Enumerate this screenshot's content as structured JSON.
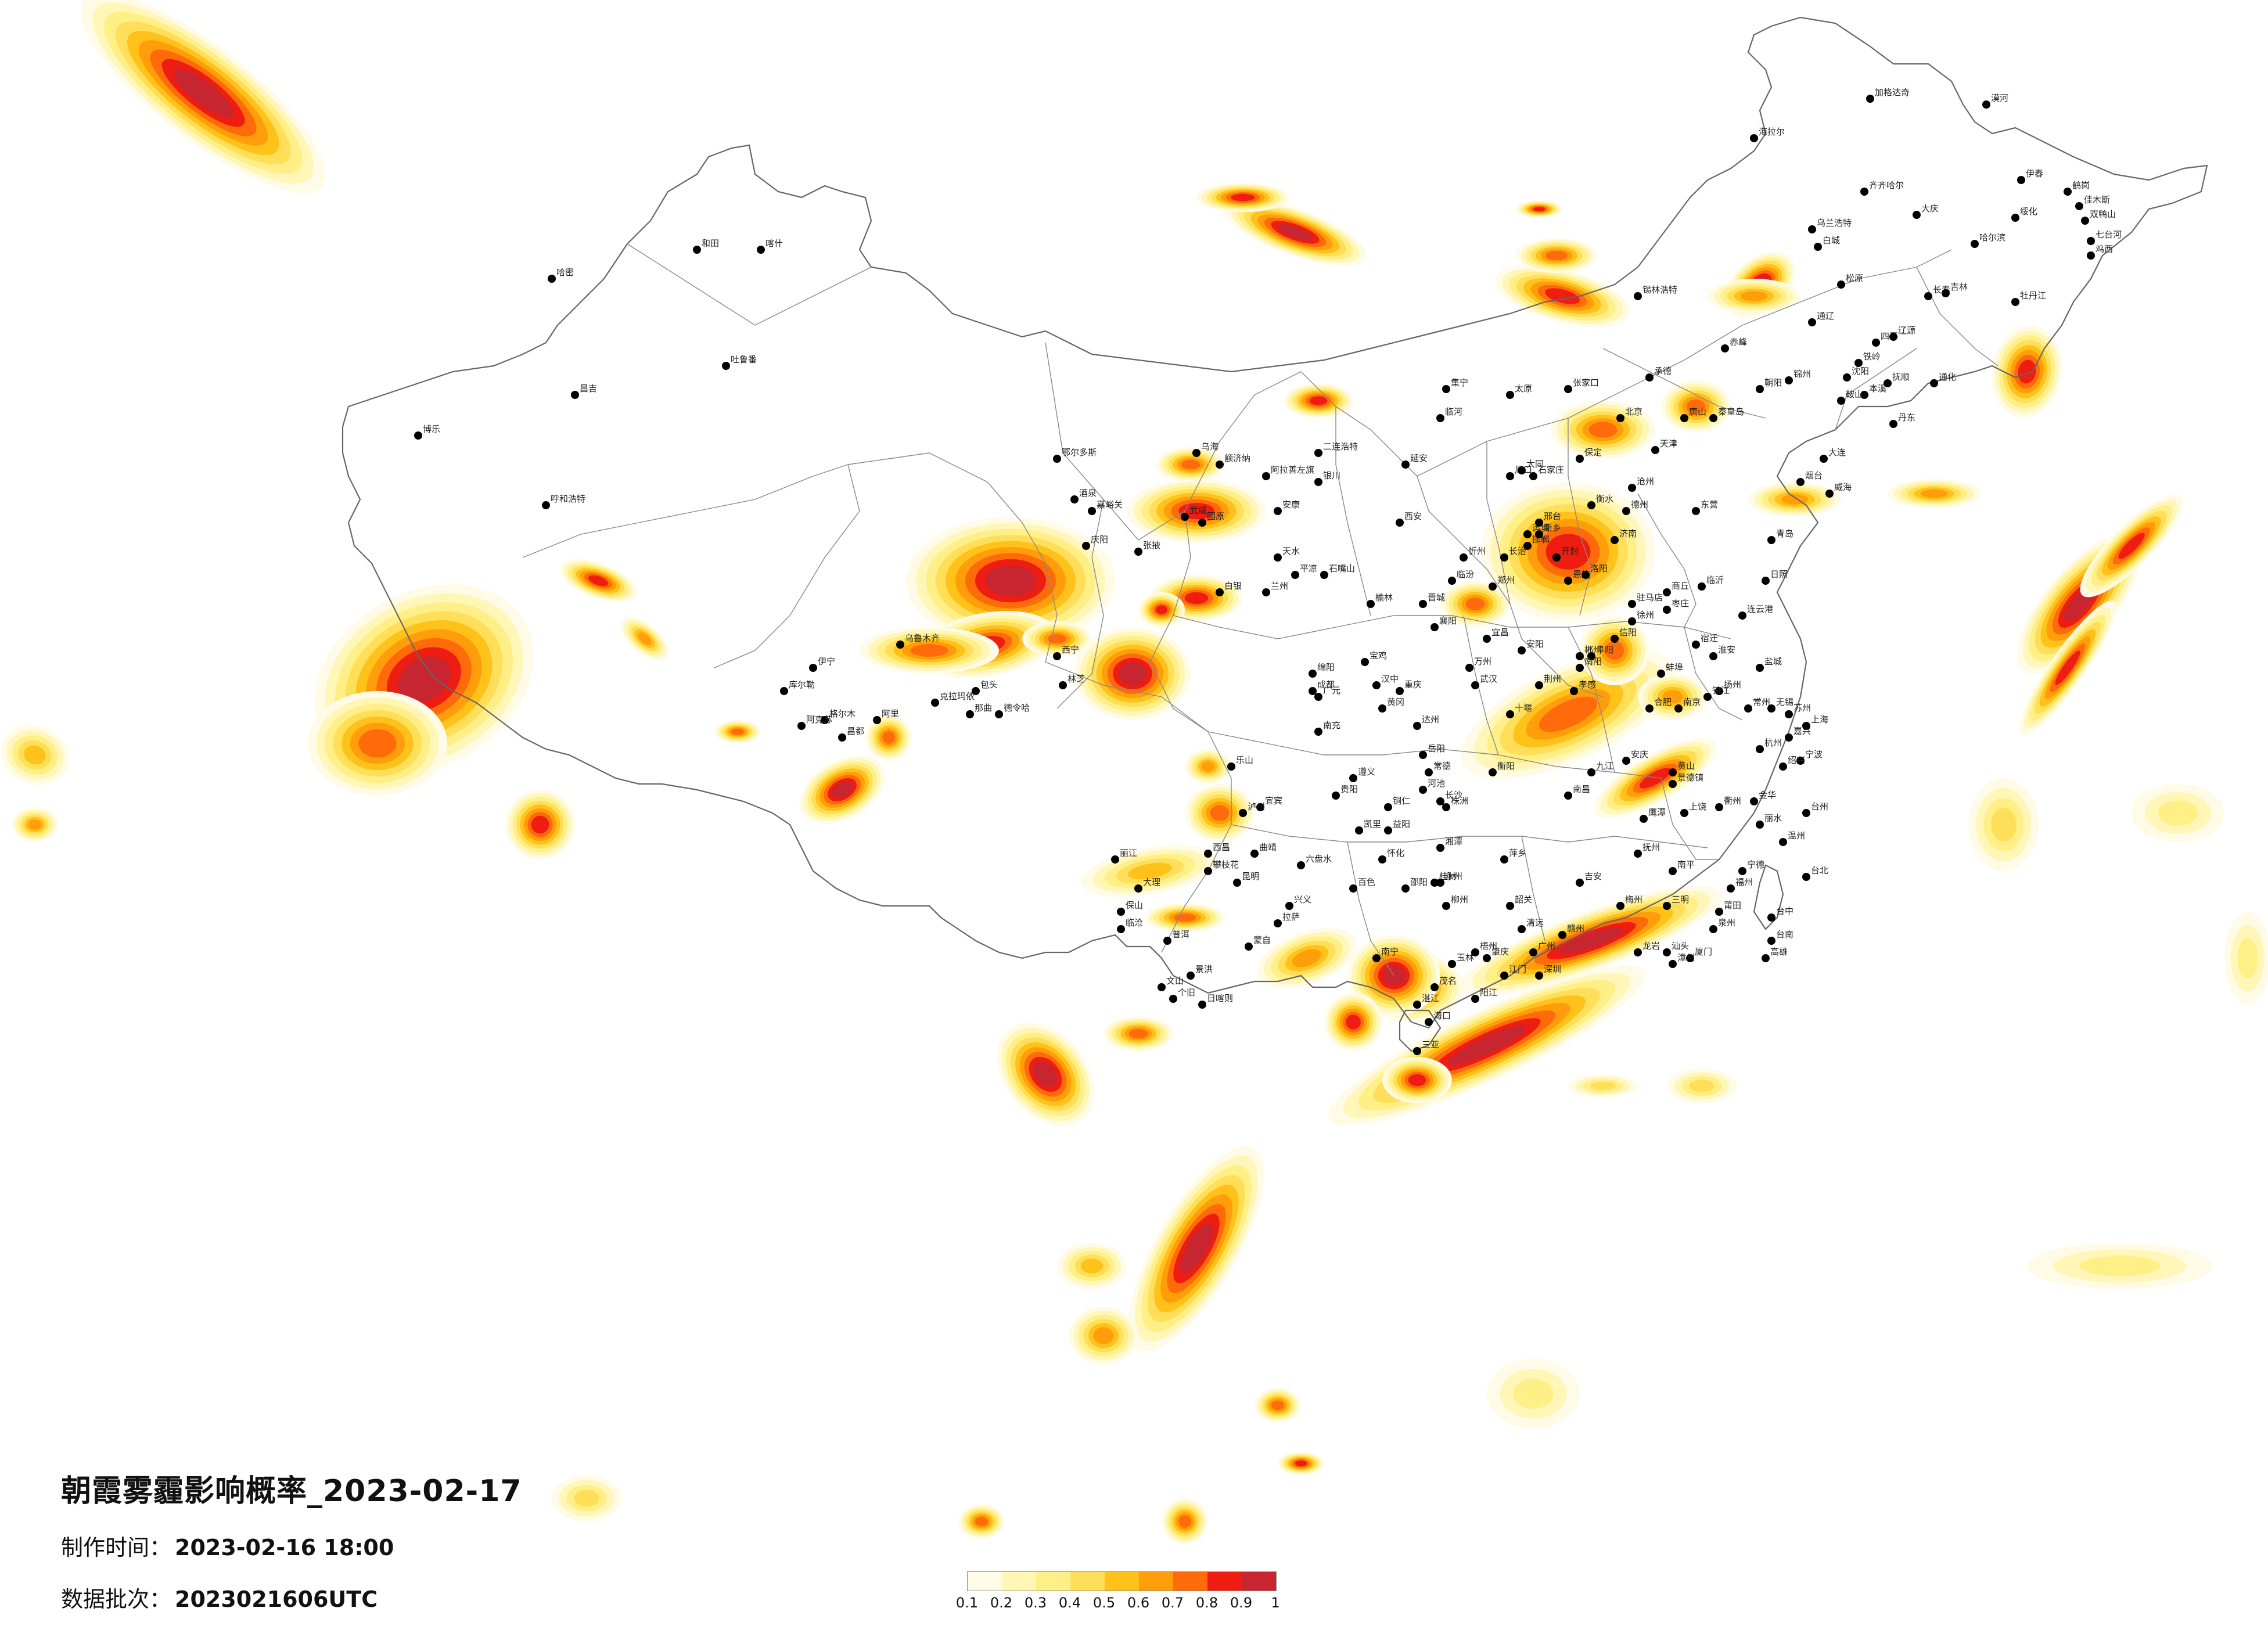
{
  "title": "朝霞雾霾影响概率_2023-02-17",
  "meta": [
    {
      "label": "制作时间：",
      "value": "2023-02-16 18:00"
    },
    {
      "label": "数据批次：",
      "value": "2023021606UTC"
    }
  ],
  "legend": {
    "ticks": [
      "0.1",
      "0.2",
      "0.3",
      "0.4",
      "0.5",
      "0.6",
      "0.7",
      "0.8",
      "0.9",
      "1"
    ],
    "colors": [
      "#fffbe6",
      "#fff6b8",
      "#ffef87",
      "#ffdf5a",
      "#ffc21a",
      "#ff9d0a",
      "#ff6a0a",
      "#ef1c12",
      "#c7252f"
    ]
  },
  "labels": [
    {
      "t": "漠河"
    },
    {
      "t": "加格达奇"
    },
    {
      "t": "海拉尔"
    },
    {
      "t": "齐齐哈尔"
    },
    {
      "t": "大庆"
    },
    {
      "t": "绥化"
    },
    {
      "t": "伊春"
    },
    {
      "t": "鹤岗"
    },
    {
      "t": "佳木斯"
    },
    {
      "t": "双鸭山"
    },
    {
      "t": "七台河"
    },
    {
      "t": "鸡西"
    },
    {
      "t": "哈尔滨"
    },
    {
      "t": "乌兰浩特"
    },
    {
      "t": "白城"
    },
    {
      "t": "松原"
    },
    {
      "t": "长春"
    },
    {
      "t": "吉林"
    },
    {
      "t": "牡丹江"
    },
    {
      "t": "通化"
    },
    {
      "t": "四平"
    },
    {
      "t": "辽源"
    },
    {
      "t": "铁岭"
    },
    {
      "t": "沈阳"
    },
    {
      "t": "抚顺"
    },
    {
      "t": "本溪"
    },
    {
      "t": "鞍山"
    },
    {
      "t": "丹东"
    },
    {
      "t": "大连"
    },
    {
      "t": "锦州"
    },
    {
      "t": "朝阳"
    },
    {
      "t": "赤峰"
    },
    {
      "t": "通辽"
    },
    {
      "t": "锡林浩特"
    },
    {
      "t": "张家口"
    },
    {
      "t": "承德"
    },
    {
      "t": "北京"
    },
    {
      "t": "天津"
    },
    {
      "t": "唐山"
    },
    {
      "t": "秦皇岛"
    },
    {
      "t": "保定"
    },
    {
      "t": "石家庄"
    },
    {
      "t": "邢台"
    },
    {
      "t": "邯郸"
    },
    {
      "t": "沧州"
    },
    {
      "t": "衡水"
    },
    {
      "t": "济南"
    },
    {
      "t": "德州"
    },
    {
      "t": "东营"
    },
    {
      "t": "烟台"
    },
    {
      "t": "威海"
    },
    {
      "t": "青岛"
    },
    {
      "t": "日照"
    },
    {
      "t": "临沂"
    },
    {
      "t": "枣庄"
    },
    {
      "t": "徐州"
    },
    {
      "t": "连云港"
    },
    {
      "t": "宿迁"
    },
    {
      "t": "淮安"
    },
    {
      "t": "盐城"
    },
    {
      "t": "扬州"
    },
    {
      "t": "南京"
    },
    {
      "t": "镇江"
    },
    {
      "t": "常州"
    },
    {
      "t": "无锡"
    },
    {
      "t": "苏州"
    },
    {
      "t": "上海"
    },
    {
      "t": "嘉兴"
    },
    {
      "t": "杭州"
    },
    {
      "t": "宁波"
    },
    {
      "t": "绍兴"
    },
    {
      "t": "金华"
    },
    {
      "t": "衢州"
    },
    {
      "t": "温州"
    },
    {
      "t": "台州"
    },
    {
      "t": "丽水"
    },
    {
      "t": "合肥"
    },
    {
      "t": "蚌埠"
    },
    {
      "t": "阜阳"
    },
    {
      "t": "安庆"
    },
    {
      "t": "黄山"
    },
    {
      "t": "南昌"
    },
    {
      "t": "九江"
    },
    {
      "t": "景德镇"
    },
    {
      "t": "上饶"
    },
    {
      "t": "鹰潭"
    },
    {
      "t": "抚州"
    },
    {
      "t": "吉安"
    },
    {
      "t": "赣州"
    },
    {
      "t": "萍乡"
    },
    {
      "t": "福州"
    },
    {
      "t": "宁德"
    },
    {
      "t": "南平"
    },
    {
      "t": "三明"
    },
    {
      "t": "莆田"
    },
    {
      "t": "泉州"
    },
    {
      "t": "厦门"
    },
    {
      "t": "漳州"
    },
    {
      "t": "龙岩"
    },
    {
      "t": "台北"
    },
    {
      "t": "台中"
    },
    {
      "t": "台南"
    },
    {
      "t": "高雄"
    },
    {
      "t": "广州"
    },
    {
      "t": "深圳"
    },
    {
      "t": "汕头"
    },
    {
      "t": "梅州"
    },
    {
      "t": "韶关"
    },
    {
      "t": "清远"
    },
    {
      "t": "肇庆"
    },
    {
      "t": "江门"
    },
    {
      "t": "阳江"
    },
    {
      "t": "茂名"
    },
    {
      "t": "湛江"
    },
    {
      "t": "海口"
    },
    {
      "t": "三亚"
    },
    {
      "t": "南宁"
    },
    {
      "t": "桂林"
    },
    {
      "t": "柳州"
    },
    {
      "t": "梧州"
    },
    {
      "t": "玉林"
    },
    {
      "t": "百色"
    },
    {
      "t": "河池"
    },
    {
      "t": "长沙"
    },
    {
      "t": "株洲"
    },
    {
      "t": "湘潭"
    },
    {
      "t": "衡阳"
    },
    {
      "t": "岳阳"
    },
    {
      "t": "常德"
    },
    {
      "t": "益阳"
    },
    {
      "t": "怀化"
    },
    {
      "t": "邵阳"
    },
    {
      "t": "永州"
    },
    {
      "t": "郴州"
    },
    {
      "t": "武汉"
    },
    {
      "t": "宜昌"
    },
    {
      "t": "襄阳"
    },
    {
      "t": "十堰"
    },
    {
      "t": "荆州"
    },
    {
      "t": "孝感"
    },
    {
      "t": "黄冈"
    },
    {
      "t": "恩施"
    },
    {
      "t": "郑州"
    },
    {
      "t": "洛阳"
    },
    {
      "t": "开封"
    },
    {
      "t": "新乡"
    },
    {
      "t": "安阳"
    },
    {
      "t": "南阳"
    },
    {
      "t": "信阳"
    },
    {
      "t": "驻马店"
    },
    {
      "t": "商丘"
    },
    {
      "t": "周口"
    },
    {
      "t": "太原"
    },
    {
      "t": "大同"
    },
    {
      "t": "忻州"
    },
    {
      "t": "临汾"
    },
    {
      "t": "运城"
    },
    {
      "t": "长治"
    },
    {
      "t": "晋城"
    },
    {
      "t": "西安"
    },
    {
      "t": "延安"
    },
    {
      "t": "榆林"
    },
    {
      "t": "宝鸡"
    },
    {
      "t": "汉中"
    },
    {
      "t": "安康"
    },
    {
      "t": "银川"
    },
    {
      "t": "石嘴山"
    },
    {
      "t": "固原"
    },
    {
      "t": "兰州"
    },
    {
      "t": "天水"
    },
    {
      "t": "平凉"
    },
    {
      "t": "庆阳"
    },
    {
      "t": "酒泉"
    },
    {
      "t": "嘉峪关"
    },
    {
      "t": "张掖"
    },
    {
      "t": "武威"
    },
    {
      "t": "白银"
    },
    {
      "t": "西宁"
    },
    {
      "t": "格尔木"
    },
    {
      "t": "德令哈"
    },
    {
      "t": "成都"
    },
    {
      "t": "绵阳"
    },
    {
      "t": "广元"
    },
    {
      "t": "南充"
    },
    {
      "t": "达州"
    },
    {
      "t": "乐山"
    },
    {
      "t": "宜宾"
    },
    {
      "t": "泸州"
    },
    {
      "t": "西昌"
    },
    {
      "t": "攀枝花"
    },
    {
      "t": "重庆"
    },
    {
      "t": "万州"
    },
    {
      "t": "贵阳"
    },
    {
      "t": "遵义"
    },
    {
      "t": "六盘水"
    },
    {
      "t": "兴义"
    },
    {
      "t": "凯里"
    },
    {
      "t": "铜仁"
    },
    {
      "t": "昆明"
    },
    {
      "t": "曲靖"
    },
    {
      "t": "大理"
    },
    {
      "t": "丽江"
    },
    {
      "t": "保山"
    },
    {
      "t": "临沧"
    },
    {
      "t": "普洱"
    },
    {
      "t": "景洪"
    },
    {
      "t": "文山"
    },
    {
      "t": "个旧"
    },
    {
      "t": "蒙自"
    },
    {
      "t": "拉萨"
    },
    {
      "t": "日喀则"
    },
    {
      "t": "林芝"
    },
    {
      "t": "昌都"
    },
    {
      "t": "那曲"
    },
    {
      "t": "阿里"
    },
    {
      "t": "乌鲁木齐"
    },
    {
      "t": "克拉玛依"
    },
    {
      "t": "伊宁"
    },
    {
      "t": "库尔勒"
    },
    {
      "t": "阿克苏"
    },
    {
      "t": "喀什"
    },
    {
      "t": "和田"
    },
    {
      "t": "哈密"
    },
    {
      "t": "吐鲁番"
    },
    {
      "t": "昌吉"
    },
    {
      "t": "博乐"
    },
    {
      "t": "呼和浩特"
    },
    {
      "t": "包头"
    },
    {
      "t": "鄂尔多斯"
    },
    {
      "t": "乌海"
    },
    {
      "t": "临河"
    },
    {
      "t": "集宁"
    },
    {
      "t": "二连浩特"
    },
    {
      "t": "阿拉善左旗"
    },
    {
      "t": "额济纳"
    }
  ]
}
